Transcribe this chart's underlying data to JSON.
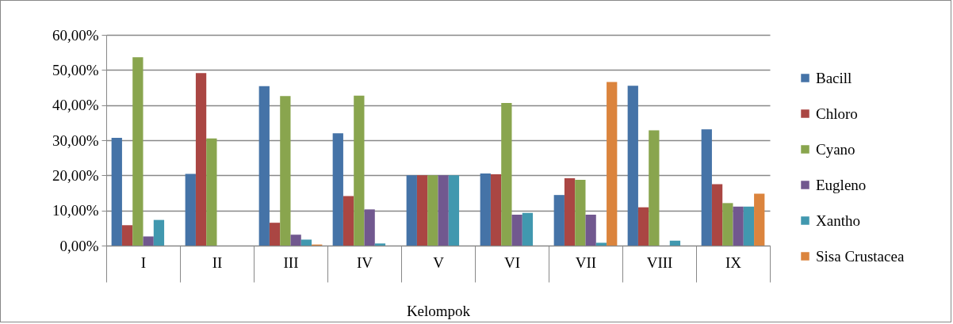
{
  "chart_data": {
    "type": "bar",
    "xlabel": "Kelompok",
    "categories": [
      "I",
      "II",
      "III",
      "IV",
      "V",
      "VI",
      "VII",
      "VIII",
      "IX"
    ],
    "series": [
      {
        "name": "Bacill",
        "color": "#4573a7",
        "values": [
          30.7,
          20.4,
          45.4,
          32.0,
          20.0,
          20.5,
          14.4,
          45.5,
          33.1
        ]
      },
      {
        "name": "Chloro",
        "color": "#aa4643",
        "values": [
          5.8,
          49.1,
          6.5,
          14.1,
          20.0,
          20.3,
          19.2,
          10.9,
          17.5
        ]
      },
      {
        "name": "Cyano",
        "color": "#89a54e",
        "values": [
          53.6,
          30.5,
          42.6,
          42.7,
          20.0,
          40.6,
          18.7,
          32.8,
          12.1
        ]
      },
      {
        "name": "Eugleno",
        "color": "#71588f",
        "values": [
          2.6,
          null,
          3.1,
          10.3,
          20.0,
          8.8,
          8.8,
          null,
          11.1
        ]
      },
      {
        "name": "Xantho",
        "color": "#4198af",
        "values": [
          7.3,
          null,
          1.7,
          0.6,
          20.0,
          9.3,
          0.8,
          1.4,
          11.1
        ]
      },
      {
        "name": "Sisa Crustacea",
        "color": "#db843d",
        "values": [
          null,
          null,
          0.3,
          null,
          null,
          null,
          46.6,
          null,
          14.8
        ]
      }
    ],
    "ylim": [
      0,
      60
    ],
    "yticks": [
      {
        "value": 0,
        "label": "0,00%"
      },
      {
        "value": 10,
        "label": "10,00%"
      },
      {
        "value": 20,
        "label": "20,00%"
      },
      {
        "value": 30,
        "label": "30,00%"
      },
      {
        "value": 40,
        "label": "40,00%"
      },
      {
        "value": 50,
        "label": "50,00%"
      },
      {
        "value": 60,
        "label": "60,00%"
      }
    ],
    "grid": "y",
    "legend": "right"
  }
}
